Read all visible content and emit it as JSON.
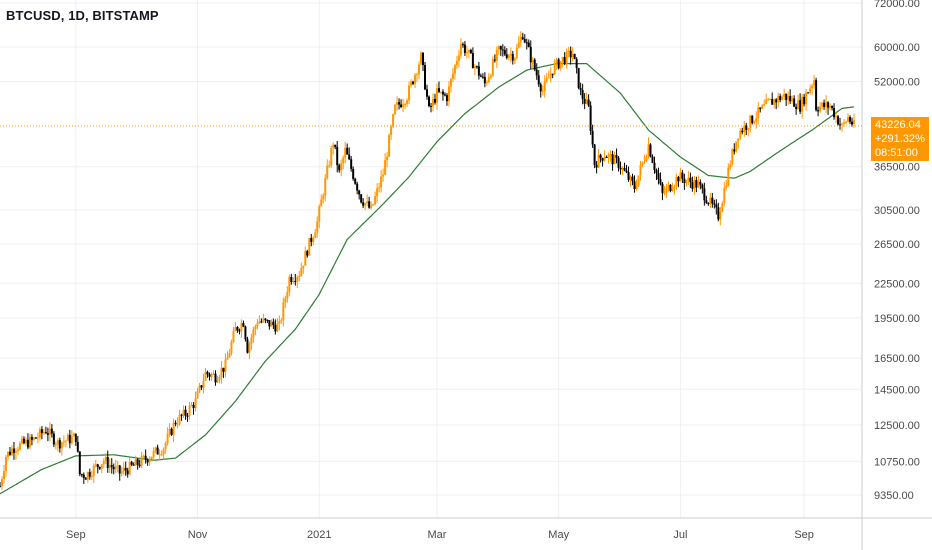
{
  "header": {
    "title": "BTCUSD, 1D, BITSTAMP"
  },
  "colors": {
    "up": "#ff9800",
    "down": "#000000",
    "ma_line": "#2e7d32",
    "last_price_line": "#ff9800",
    "price_box": "#ff9800",
    "grid": "#eef0f3",
    "axis_text": "#4a4a4a"
  },
  "last_price_box": {
    "price": "43226.04",
    "change": "+291.32%",
    "countdown": "08:51:00"
  },
  "chart_data": {
    "type": "candlestick",
    "symbol": "BTCUSD",
    "interval": "1D",
    "exchange": "BITSTAMP",
    "y_scale": "log",
    "ylim": [
      8500,
      72000
    ],
    "xlim": [
      "2020-07-25",
      "2021-09-26"
    ],
    "y_ticks": [
      "72000.00",
      "60000.00",
      "52000.00",
      "36500.00",
      "30500.00",
      "26500.00",
      "22500.00",
      "19500.00",
      "16500.00",
      "14500.00",
      "12500.00",
      "10750.00",
      "9350.00"
    ],
    "x_ticks": [
      {
        "label": "Sep",
        "date": "2020-09-01"
      },
      {
        "label": "Nov",
        "date": "2020-11-01"
      },
      {
        "label": "2021",
        "date": "2021-01-01"
      },
      {
        "label": "Mar",
        "date": "2021-03-01"
      },
      {
        "label": "May",
        "date": "2021-05-01"
      },
      {
        "label": "Jul",
        "date": "2021-07-01"
      },
      {
        "label": "Sep",
        "date": "2021-09-01"
      }
    ],
    "grid": true,
    "last_price": 43226.04,
    "close_path": [
      [
        "2020-07-25",
        9700
      ],
      [
        "2020-07-28",
        11000
      ],
      [
        "2020-08-01",
        11400
      ],
      [
        "2020-08-10",
        11700
      ],
      [
        "2020-08-17",
        12250
      ],
      [
        "2020-08-23",
        11600
      ],
      [
        "2020-09-01",
        11900
      ],
      [
        "2020-09-03",
        10200
      ],
      [
        "2020-09-06",
        10150
      ],
      [
        "2020-09-15",
        10800
      ],
      [
        "2020-09-23",
        10250
      ],
      [
        "2020-10-01",
        10600
      ],
      [
        "2020-10-09",
        11050
      ],
      [
        "2020-10-15",
        11400
      ],
      [
        "2020-10-21",
        12700
      ],
      [
        "2020-10-26",
        13100
      ],
      [
        "2020-10-31",
        13800
      ],
      [
        "2020-11-05",
        15500
      ],
      [
        "2020-11-10",
        15300
      ],
      [
        "2020-11-15",
        16000
      ],
      [
        "2020-11-20",
        18600
      ],
      [
        "2020-11-24",
        19200
      ],
      [
        "2020-11-26",
        17200
      ],
      [
        "2020-12-01",
        19300
      ],
      [
        "2020-12-12",
        18800
      ],
      [
        "2020-12-17",
        23000
      ],
      [
        "2020-12-22",
        23500
      ],
      [
        "2020-12-27",
        26500
      ],
      [
        "2020-12-31",
        29000
      ],
      [
        "2021-01-03",
        33000
      ],
      [
        "2021-01-08",
        40500
      ],
      [
        "2021-01-11",
        35500
      ],
      [
        "2021-01-14",
        39000
      ],
      [
        "2021-01-22",
        32000
      ],
      [
        "2021-01-27",
        30500
      ],
      [
        "2021-02-02",
        35500
      ],
      [
        "2021-02-08",
        46500
      ],
      [
        "2021-02-14",
        49000
      ],
      [
        "2021-02-21",
        57500
      ],
      [
        "2021-02-25",
        46000
      ],
      [
        "2021-03-01",
        49500
      ],
      [
        "2021-03-06",
        48800
      ],
      [
        "2021-03-13",
        61000
      ],
      [
        "2021-03-17",
        58000
      ],
      [
        "2021-03-25",
        51500
      ],
      [
        "2021-04-01",
        59000
      ],
      [
        "2021-04-09",
        58000
      ],
      [
        "2021-04-13",
        63500
      ],
      [
        "2021-04-18",
        56000
      ],
      [
        "2021-04-23",
        50000
      ],
      [
        "2021-04-28",
        54800
      ],
      [
        "2021-05-03",
        57000
      ],
      [
        "2021-05-08",
        58500
      ],
      [
        "2021-05-12",
        49500
      ],
      [
        "2021-05-16",
        46500
      ],
      [
        "2021-05-19",
        37000
      ],
      [
        "2021-05-24",
        38500
      ],
      [
        "2021-05-31",
        37000
      ],
      [
        "2021-06-08",
        33500
      ],
      [
        "2021-06-15",
        40000
      ],
      [
        "2021-06-22",
        32500
      ],
      [
        "2021-06-30",
        35000
      ],
      [
        "2021-07-10",
        33800
      ],
      [
        "2021-07-20",
        29800
      ],
      [
        "2021-07-22",
        32000
      ],
      [
        "2021-07-26",
        37300
      ],
      [
        "2021-07-30",
        42000
      ],
      [
        "2021-08-07",
        44800
      ],
      [
        "2021-08-14",
        47500
      ],
      [
        "2021-08-22",
        49000
      ],
      [
        "2021-08-30",
        47000
      ],
      [
        "2021-09-06",
        52500
      ],
      [
        "2021-09-07",
        46800
      ],
      [
        "2021-09-14",
        47000
      ],
      [
        "2021-09-20",
        43000
      ],
      [
        "2021-09-23",
        44800
      ],
      [
        "2021-09-26",
        43226
      ]
    ],
    "moving_average": [
      [
        "2020-07-25",
        9400
      ],
      [
        "2020-08-15",
        10400
      ],
      [
        "2020-09-01",
        11000
      ],
      [
        "2020-09-20",
        11050
      ],
      [
        "2020-10-10",
        10800
      ],
      [
        "2020-10-21",
        10900
      ],
      [
        "2020-11-05",
        12000
      ],
      [
        "2020-11-20",
        13800
      ],
      [
        "2020-12-05",
        16300
      ],
      [
        "2020-12-20",
        18600
      ],
      [
        "2021-01-01",
        21500
      ],
      [
        "2021-01-15",
        27000
      ],
      [
        "2021-02-01",
        31000
      ],
      [
        "2021-02-15",
        35000
      ],
      [
        "2021-03-01",
        40500
      ],
      [
        "2021-03-15",
        45500
      ],
      [
        "2021-04-01",
        50800
      ],
      [
        "2021-04-15",
        54500
      ],
      [
        "2021-04-30",
        56000
      ],
      [
        "2021-05-15",
        56000
      ],
      [
        "2021-06-01",
        49500
      ],
      [
        "2021-06-15",
        42500
      ],
      [
        "2021-07-01",
        38000
      ],
      [
        "2021-07-15",
        35200
      ],
      [
        "2021-07-28",
        34800
      ],
      [
        "2021-08-05",
        35800
      ],
      [
        "2021-08-20",
        39000
      ],
      [
        "2021-09-05",
        42500
      ],
      [
        "2021-09-20",
        46500
      ],
      [
        "2021-09-26",
        46800
      ]
    ]
  }
}
